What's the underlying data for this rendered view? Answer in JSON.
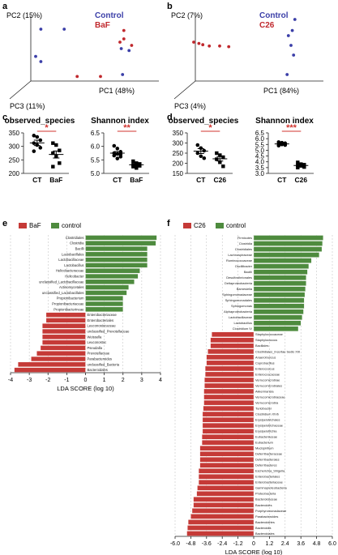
{
  "panel_letters": {
    "a": "a",
    "b": "b",
    "c": "c",
    "d": "d",
    "e": "e",
    "f": "f"
  },
  "colors": {
    "control_blue": "#3b3fa8",
    "treatment_red": "#c0282d",
    "bar_red": "#c53a37",
    "bar_green": "#4e8b3e",
    "sig_red": "#d1342f",
    "axis": "#222222",
    "grid": "#bbbbbb"
  },
  "chart_data": [
    {
      "id": "a",
      "type": "scatter",
      "legend": [
        "Control",
        "BaF"
      ],
      "axis_labels": {
        "pc1": "PC1 (48%)",
        "pc2": "PC2 (15%)",
        "pc3": "PC3 (11%)"
      },
      "series": [
        {
          "name": "Control",
          "color": "#3b3fa8",
          "points": [
            [
              0.14,
              0.8
            ],
            [
              0.32,
              0.8
            ],
            [
              0.77,
              0.1
            ],
            [
              0.1,
              0.38
            ],
            [
              0.14,
              0.3
            ],
            [
              0.76,
              0.5
            ],
            [
              0.82,
              0.47
            ]
          ]
        },
        {
          "name": "BaF",
          "color": "#c0282d",
          "points": [
            [
              0.78,
              0.78
            ],
            [
              0.78,
              0.65
            ],
            [
              0.75,
              0.6
            ],
            [
              0.84,
              0.55
            ],
            [
              0.42,
              0.07
            ],
            [
              0.6,
              0.07
            ]
          ]
        }
      ]
    },
    {
      "id": "b",
      "type": "scatter",
      "legend": [
        "Control",
        "C26"
      ],
      "axis_labels": {
        "pc1": "PC1 (84%)",
        "pc2": "PC2 (7%)",
        "pc3": "PC3 (4%)"
      },
      "series": [
        {
          "name": "Control",
          "color": "#3b3fa8",
          "points": [
            [
              0.83,
              0.95
            ],
            [
              0.81,
              0.78
            ],
            [
              0.78,
              0.7
            ],
            [
              0.8,
              0.55
            ],
            [
              0.82,
              0.4
            ],
            [
              0.77,
              0.1
            ]
          ]
        },
        {
          "name": "C26",
          "color": "#c0282d",
          "points": [
            [
              0.05,
              0.6
            ],
            [
              0.09,
              0.58
            ],
            [
              0.12,
              0.56
            ],
            [
              0.17,
              0.54
            ],
            [
              0.25,
              0.54
            ],
            [
              0.32,
              0.53
            ]
          ]
        }
      ]
    },
    {
      "id": "c1",
      "type": "scatter",
      "title": "observed_species",
      "categories": [
        "CT",
        "BaF"
      ],
      "ylim": [
        200,
        350
      ],
      "yticks": [
        200,
        250,
        300,
        350
      ],
      "significance": "*",
      "means": [
        313,
        270
      ],
      "sems": [
        10,
        13
      ],
      "points": [
        [
          340,
          335,
          323,
          312,
          305,
          295,
          282
        ],
        [
          312,
          305,
          285,
          275,
          262,
          238,
          225
        ]
      ]
    },
    {
      "id": "c2",
      "type": "scatter",
      "title": "Shannon index",
      "categories": [
        "CT",
        "BaF"
      ],
      "ylim": [
        5.0,
        6.5
      ],
      "yticks": [
        5.0,
        5.5,
        6.0,
        6.5
      ],
      "significance": "**",
      "means": [
        5.75,
        5.32
      ],
      "sems": [
        0.06,
        0.04
      ],
      "points": [
        [
          6.02,
          5.92,
          5.8,
          5.75,
          5.72,
          5.7,
          5.66,
          5.55,
          5.62
        ],
        [
          5.45,
          5.38,
          5.35,
          5.32,
          5.3,
          5.28,
          5.25,
          5.2
        ]
      ]
    },
    {
      "id": "d1",
      "type": "scatter",
      "title": "observed_species",
      "categories": [
        "CT",
        "C26"
      ],
      "ylim": [
        150,
        350
      ],
      "yticks": [
        150,
        200,
        250,
        300,
        350
      ],
      "significance": "*",
      "means": [
        260,
        222
      ],
      "sems": [
        12,
        11
      ],
      "points": [
        [
          290,
          275,
          262,
          250,
          235,
          225
        ],
        [
          250,
          240,
          230,
          220,
          205,
          185
        ]
      ]
    },
    {
      "id": "d2",
      "type": "scatter",
      "title": "Shannon index",
      "categories": [
        "CT",
        "C26"
      ],
      "ylim": [
        3.0,
        6.5
      ],
      "yticks": [
        3.0,
        3.5,
        4.0,
        4.5,
        5.0,
        5.5,
        6.0,
        6.5
      ],
      "significance": "***",
      "means": [
        5.55,
        3.68
      ],
      "sems": [
        0.05,
        0.07
      ],
      "points": [
        [
          5.7,
          5.65,
          5.6,
          5.55,
          5.5,
          5.45,
          5.4
        ],
        [
          3.95,
          3.8,
          3.75,
          3.7,
          3.65,
          3.55,
          3.5
        ]
      ]
    },
    {
      "id": "e",
      "type": "bar",
      "orientation": "horizontal",
      "legend": [
        "BaF",
        "control"
      ],
      "xlabel": "LDA SCORE (log 10)",
      "xlim": [
        -4,
        4
      ],
      "xticks": [
        -4,
        -3,
        -2,
        -1,
        0,
        1,
        2,
        3,
        4
      ],
      "categories": [
        "Clostridiales",
        "Clostridia",
        "Bacilli",
        "Lactobacillales",
        "Lactobacillaceae",
        "Lactobacillus",
        "Helicobacteraceae",
        "Helicobacter",
        "unclassified_Lactobacillaceae",
        "Actinomycetales",
        "unclassified_Lactobacillales",
        "Propionibacterium",
        "Propionibacteriaceae",
        "Propionibacterineae",
        "Enterobacteriaceae",
        "Enterobacteriales",
        "Leuconostocaceae",
        "unclassified_Prevotellaceae",
        "Weissella",
        "Leuconostoc",
        "Pseudalla",
        "Prevotellaceae",
        "Parabacteroides",
        "unclassified_Bacteria",
        "Bacteroidales"
      ],
      "values": [
        3.8,
        3.75,
        3.3,
        3.3,
        3.3,
        3.3,
        2.9,
        2.8,
        2.6,
        2.3,
        2.2,
        2.0,
        2.0,
        2.0,
        -2.1,
        -2.1,
        -2.3,
        -2.3,
        -2.3,
        -2.3,
        -2.4,
        -2.6,
        -2.9,
        -3.6,
        -3.8
      ]
    },
    {
      "id": "f",
      "type": "bar",
      "orientation": "horizontal",
      "legend": [
        "C26",
        "control"
      ],
      "xlabel": "LDA SCORE (log 10)",
      "xlim": [
        -6,
        6
      ],
      "xticks": [
        "-6.0",
        "-4.8",
        "-3.6",
        "-2.4",
        "-1.2",
        "0",
        "1.2",
        "2.4",
        "3.6",
        "4.8",
        "6.0"
      ],
      "categories": [
        "Firmicutes",
        "Clostridia",
        "Clostridiales",
        "Lachnospiraceae",
        "Ruminococcaceae",
        "Oscillibacter",
        "Bacilli",
        "Desulfovibrionales",
        "Deltaproteobacteria",
        "Barnesiella",
        "Sphingomonadaceae",
        "Sphingomonadales",
        "Sphingomonas",
        "Alphaproteobacteria",
        "Lactobacillaceae",
        "Lactobacillus",
        "Clostridium IV",
        "Staphylococcaceae",
        "Staphylococcus",
        "Bacillales",
        "Clostridiales_Incertae Sedis XIII",
        "Anaerotruncus",
        "Coprobacillus",
        "Enterococcus",
        "Enterococcaceae",
        "Verrucomicrobiae",
        "Verrucomicrobiales",
        "Akkermansia",
        "Verrucomicrobiaceae",
        "Verrucomicrobia",
        "Turicibacter",
        "Clostridium XIVb",
        "Erysipelotrichales",
        "Erysipelotrichaceae",
        "Erysipelotrichia",
        "Eubacteriaceae",
        "Eubacterium",
        "Mucispirillum",
        "Deferribacteraceae",
        "Deferribacterales",
        "Deferribacteres",
        "Escherichia_Shigella",
        "Enterobacteriales",
        "Enterobacteriaceae",
        "Gammaproteobacteria",
        "Proteobacteria",
        "Bacteroidaceae",
        "Bacteroides",
        "Porphyromonadaceae",
        "Parabacteroides",
        "Bacteroidetes",
        "Bacteroidia",
        "Bacteroidales"
      ],
      "values": [
        5.3,
        5.25,
        5.2,
        5.0,
        4.4,
        4.2,
        4.1,
        4.0,
        4.0,
        3.95,
        3.9,
        3.85,
        3.85,
        3.8,
        3.7,
        3.6,
        3.4,
        -3.2,
        -3.3,
        -3.3,
        -3.5,
        -3.6,
        -3.6,
        -3.7,
        -3.7,
        -3.75,
        -3.75,
        -3.8,
        -3.8,
        -3.8,
        -3.85,
        -3.9,
        -3.9,
        -3.9,
        -3.9,
        -3.95,
        -3.95,
        -4.1,
        -4.1,
        -4.1,
        -4.1,
        -4.2,
        -4.2,
        -4.2,
        -4.3,
        -4.35,
        -4.6,
        -4.6,
        -4.7,
        -4.8,
        -5.0,
        -5.05,
        -5.1
      ]
    }
  ]
}
